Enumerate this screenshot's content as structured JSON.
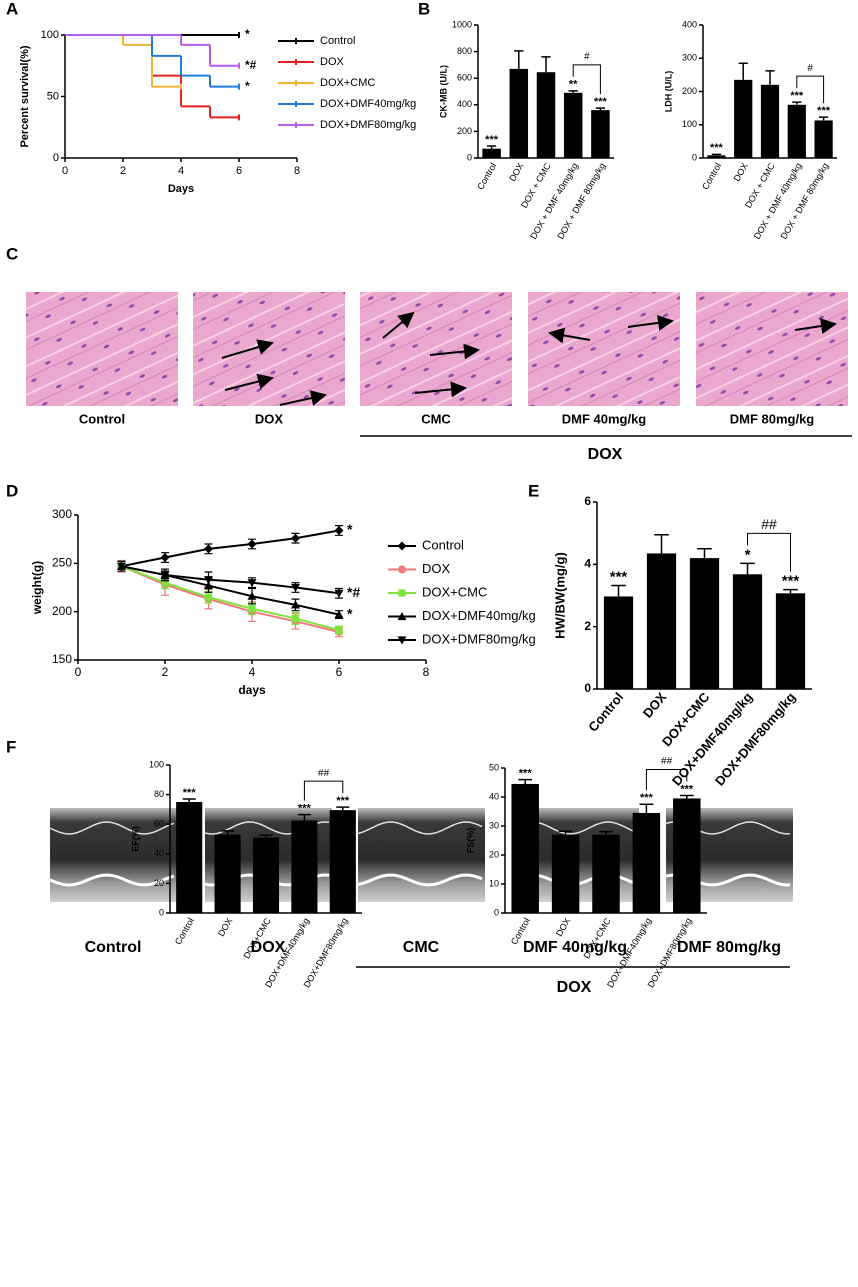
{
  "panel_labels": [
    "A",
    "B",
    "C",
    "D",
    "E",
    "F"
  ],
  "histology": {
    "captions": [
      "Control",
      "DOX",
      "CMC",
      "DMF 40mg/kg",
      "DMF 80mg/kg"
    ],
    "group_label": "DOX"
  },
  "echo": {
    "captions": [
      "Control",
      "DOX",
      "CMC",
      "DMF 40mg/kg",
      "DMF 80mg/kg"
    ],
    "group_label": "DOX"
  },
  "chart_data": [
    {
      "type": "step",
      "xlabel": "Days",
      "ylabel": "Percent survival(%)",
      "xlim": [
        0,
        8
      ],
      "xticks": [
        0,
        2,
        4,
        6,
        8
      ],
      "ylim": [
        0,
        100
      ],
      "yticks": [
        0,
        50,
        100
      ],
      "series": [
        {
          "name": "Control",
          "color": "#000000",
          "x": [
            0,
            6
          ],
          "values": [
            100,
            100
          ],
          "annotation": "*"
        },
        {
          "name": "DOX",
          "color": "#e32222",
          "x": [
            0,
            3,
            4,
            5,
            6
          ],
          "values": [
            100,
            67,
            42,
            33,
            33
          ]
        },
        {
          "name": "DOX+CMC",
          "color": "#f5b335",
          "x": [
            0,
            2,
            3,
            4
          ],
          "values": [
            100,
            92,
            58,
            58
          ]
        },
        {
          "name": "DOX+DMF40mg/kg",
          "color": "#1f7be0",
          "x": [
            0,
            3,
            4,
            5,
            6
          ],
          "values": [
            100,
            83,
            67,
            58,
            58
          ],
          "annotation": "*"
        },
        {
          "name": "DOX+DMF80mg/kg",
          "color": "#b85ee8",
          "x": [
            0,
            4,
            5,
            6
          ],
          "values": [
            100,
            92,
            75,
            75
          ],
          "annotation": "*#"
        }
      ]
    },
    {
      "type": "bar",
      "ylabel": "CK-MB (U/L)",
      "color": "#000000",
      "categories": [
        "Control",
        "DOX",
        "DOX + CMC",
        "DOX + DMF 40mg/kg",
        "DOX + DMF 80mg/kg"
      ],
      "values": [
        70,
        670,
        645,
        490,
        360
      ],
      "errors": [
        20,
        135,
        115,
        15,
        15
      ],
      "significance": [
        "***",
        null,
        null,
        "**",
        "***"
      ],
      "bracket_label": "#",
      "ylim": [
        0,
        1000
      ],
      "yticks": [
        0,
        200,
        400,
        600,
        800,
        1000
      ]
    },
    {
      "type": "bar",
      "ylabel": "LDH (U/L)",
      "color": "#000000",
      "categories": [
        "Control",
        "DOX",
        "DOX + CMC",
        "DOX + DMF 40mg/kg",
        "DOX + DMF 80mg/kg"
      ],
      "values": [
        8,
        235,
        220,
        160,
        113
      ],
      "errors": [
        3,
        50,
        42,
        8,
        10
      ],
      "significance": [
        "***",
        null,
        null,
        "***",
        "***"
      ],
      "bracket_label": "#",
      "ylim": [
        0,
        400
      ],
      "yticks": [
        0,
        100,
        200,
        300,
        400
      ]
    },
    {
      "type": "line",
      "xlabel": "days",
      "ylabel": "weight(g)",
      "xlim": [
        0,
        8
      ],
      "xticks": [
        0,
        2,
        4,
        6,
        8
      ],
      "ylim": [
        150,
        300
      ],
      "yticks": [
        150,
        200,
        250,
        300
      ],
      "x": [
        1,
        2,
        3,
        4,
        5,
        6
      ],
      "series": [
        {
          "name": "Control",
          "color": "#000000",
          "marker": "diamond",
          "values": [
            247,
            256,
            265,
            270,
            276,
            284
          ],
          "errors": [
            5,
            5,
            5,
            5,
            5,
            5
          ],
          "annotation": "*"
        },
        {
          "name": "DOX",
          "color": "#f07a7a",
          "marker": "circle",
          "values": [
            247,
            228,
            213,
            200,
            190,
            179
          ],
          "errors": [
            6,
            11,
            10,
            10,
            8,
            5
          ]
        },
        {
          "name": "DOX+CMC",
          "color": "#7ee33a",
          "marker": "square",
          "values": [
            247,
            230,
            215,
            203,
            193,
            181
          ],
          "errors": [
            5,
            6,
            6,
            6,
            6,
            4
          ]
        },
        {
          "name": "DOX+DMF40mg/kg",
          "color": "#000000",
          "marker": "triangle-up",
          "values": [
            247,
            238,
            227,
            216,
            207,
            197
          ],
          "errors": [
            5,
            6,
            7,
            8,
            6,
            4
          ],
          "annotation": "*"
        },
        {
          "name": "DOX+DMF80mg/kg",
          "color": "#000000",
          "marker": "triangle-down",
          "values": [
            247,
            238,
            233,
            230,
            225,
            219
          ],
          "errors": [
            5,
            4,
            8,
            5,
            5,
            5
          ],
          "annotation": "*#"
        }
      ]
    },
    {
      "type": "bar",
      "ylabel": "HW/BW(mg/g)",
      "color": "#000000",
      "categories": [
        "Control",
        "DOX",
        "DOX+CMC",
        "DOX+DMF40mg/kg",
        "DOX+DMF80mg/kg"
      ],
      "values": [
        2.97,
        4.35,
        4.2,
        3.68,
        3.07
      ],
      "errors": [
        0.35,
        0.6,
        0.3,
        0.35,
        0.12
      ],
      "significance": [
        "***",
        null,
        null,
        "*",
        "***"
      ],
      "bracket_label": "##",
      "ylim": [
        0,
        6
      ],
      "yticks": [
        0,
        2,
        4,
        6
      ]
    },
    {
      "type": "bar",
      "ylabel": "EF(%)",
      "color": "#000000",
      "categories": [
        "Control",
        "DOX",
        "DOX+CMC",
        "DOX+DMF40mg/kg",
        "DOX+DMF80mg/kg"
      ],
      "values": [
        75,
        53,
        51,
        62.5,
        69.5
      ],
      "errors": [
        2,
        2.5,
        1.5,
        4,
        2
      ],
      "significance": [
        "***",
        null,
        null,
        "***",
        "***"
      ],
      "bracket_label": "##",
      "ylim": [
        0,
        100
      ],
      "yticks": [
        0,
        20,
        40,
        60,
        80,
        100
      ]
    },
    {
      "type": "bar",
      "ylabel": "FS(%)",
      "color": "#000000",
      "categories": [
        "Control",
        "DOX",
        "DOX+CMC",
        "DOX+DMF40mg/kg",
        "DOX+DMF80mg/kg"
      ],
      "values": [
        44.5,
        27,
        27,
        34.5,
        39.5
      ],
      "errors": [
        1.5,
        1.2,
        1,
        3,
        1
      ],
      "significance": [
        "***",
        null,
        null,
        "***",
        "***"
      ],
      "bracket_label": "##",
      "ylim": [
        0,
        50
      ],
      "yticks": [
        0,
        10,
        20,
        30,
        40,
        50
      ]
    }
  ]
}
